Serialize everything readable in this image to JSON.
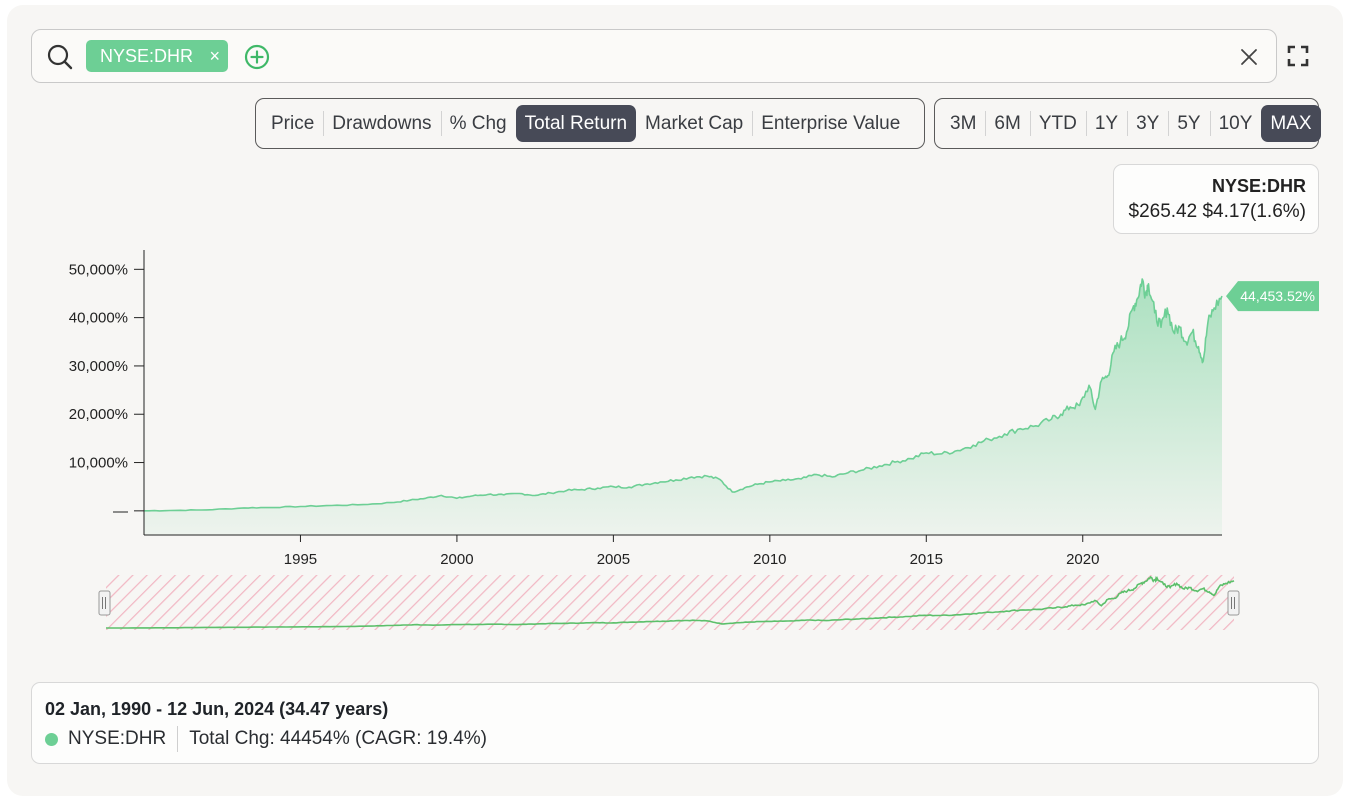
{
  "search": {
    "chip_label": "NYSE:DHR",
    "chip_remove": "×"
  },
  "metric_tabs": [
    {
      "label": "Price",
      "active": false
    },
    {
      "label": "Drawdowns",
      "active": false
    },
    {
      "label": "% Chg",
      "active": false
    },
    {
      "label": "Total Return",
      "active": true
    },
    {
      "label": "Market Cap",
      "active": false
    },
    {
      "label": "Enterprise Value",
      "active": false
    }
  ],
  "range_tabs": [
    {
      "label": "3M",
      "active": false
    },
    {
      "label": "6M",
      "active": false
    },
    {
      "label": "YTD",
      "active": false
    },
    {
      "label": "1Y",
      "active": false
    },
    {
      "label": "3Y",
      "active": false
    },
    {
      "label": "5Y",
      "active": false
    },
    {
      "label": "10Y",
      "active": false
    },
    {
      "label": "MAX",
      "active": true
    }
  ],
  "legend": {
    "ticker": "NYSE:DHR",
    "price": "$265.42",
    "change": "$4.17(1.6%)"
  },
  "colors": {
    "series": "#6dcf95",
    "active_tab": "#474a57",
    "navigator_hatch": "#f2b8c4"
  },
  "icons": {
    "search": "search-icon",
    "add": "plus-circle-icon",
    "clear": "close-icon",
    "fullscreen": "fullscreen-icon"
  },
  "chart_data": {
    "type": "area",
    "series": [
      {
        "name": "NYSE:DHR",
        "x": [
          1990.0,
          1991.0,
          1992.0,
          1993.2,
          1994.0,
          1995.0,
          1996.0,
          1997.0,
          1997.9,
          1998.5,
          1999.0,
          1999.5,
          2000.0,
          2000.5,
          2001.0,
          2001.5,
          2002.0,
          2002.5,
          2003.0,
          2003.5,
          2004.0,
          2004.5,
          2005.0,
          2005.5,
          2006.0,
          2006.5,
          2007.0,
          2007.5,
          2008.0,
          2008.4,
          2008.8,
          2009.2,
          2009.6,
          2010.0,
          2010.5,
          2011.0,
          2011.5,
          2012.0,
          2012.5,
          2013.0,
          2013.5,
          2014.0,
          2014.5,
          2015.0,
          2015.5,
          2016.0,
          2016.5,
          2017.0,
          2017.5,
          2018.0,
          2018.5,
          2019.0,
          2019.3,
          2019.6,
          2019.9,
          2020.2,
          2020.4,
          2020.6,
          2020.8,
          2021.0,
          2021.2,
          2021.4,
          2021.6,
          2021.75,
          2021.9,
          2022.0,
          2022.1,
          2022.3,
          2022.5,
          2022.7,
          2022.9,
          2023.1,
          2023.3,
          2023.5,
          2023.7,
          2023.85,
          2024.0,
          2024.2,
          2024.45
        ],
        "y": [
          0,
          100,
          200,
          600,
          700,
          900,
          1100,
          1300,
          1700,
          2200,
          2600,
          3200,
          2600,
          3100,
          3400,
          3300,
          3600,
          3200,
          3700,
          4200,
          4400,
          4700,
          5000,
          4900,
          5500,
          6000,
          6400,
          7000,
          7200,
          6500,
          3900,
          4800,
          5500,
          6000,
          6300,
          6600,
          7500,
          7000,
          7900,
          8500,
          9300,
          10100,
          10800,
          12000,
          11800,
          12500,
          13600,
          14800,
          15900,
          17000,
          17600,
          19000,
          20000,
          21500,
          21800,
          26000,
          21000,
          27000,
          28000,
          33000,
          35000,
          37000,
          42000,
          44000,
          48000,
          45000,
          47000,
          41000,
          38000,
          42000,
          37000,
          38000,
          35000,
          37000,
          34000,
          31000,
          39000,
          42000,
          44453.52
        ]
      }
    ],
    "yticks": [
      0,
      10000,
      20000,
      30000,
      40000,
      50000
    ],
    "ytick_labels": [
      "—",
      "10,000%",
      "20,000%",
      "30,000%",
      "40,000%",
      "50,000%"
    ],
    "xticks": [
      1995,
      2000,
      2005,
      2010,
      2015,
      2020
    ],
    "xlim": [
      1990.0,
      2024.45
    ],
    "ylim": [
      -5000,
      54000
    ],
    "last_value_label": "44,453.52%",
    "grid": false,
    "legend_position": "top-right",
    "navigator": true
  },
  "summary": {
    "range": "02 Jan, 1990 - 12 Jun, 2024 (34.47 years)",
    "ticker": "NYSE:DHR",
    "total_change": "Total Chg: 44454% (CAGR: 19.4%)"
  }
}
